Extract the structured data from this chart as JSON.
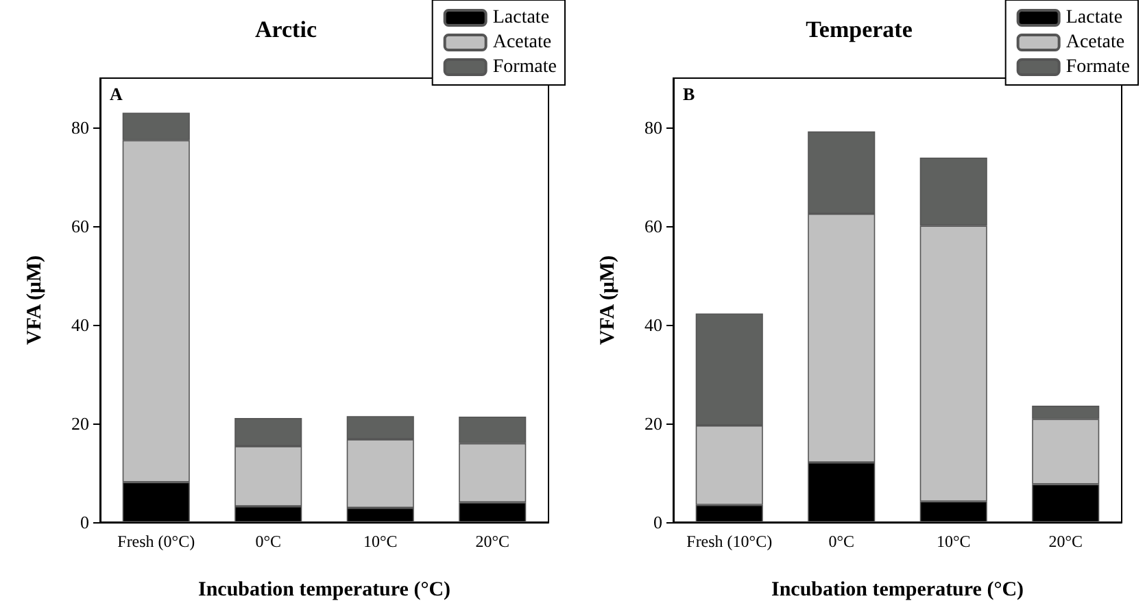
{
  "chart_data": [
    {
      "type": "bar",
      "title": "Arctic",
      "xlabel": "Incubation temperature (°C)",
      "ylabel": "VFA (μM)",
      "annotations": [
        "A"
      ],
      "categories": [
        "Fresh (0°C)",
        "0°C",
        "10°C",
        "20°C"
      ],
      "stacked": true,
      "legend": "top right",
      "grid": false,
      "ylim": [
        0,
        90
      ],
      "yticks": [
        0,
        20,
        40,
        60,
        80
      ],
      "series": [
        {
          "name": "Lactate",
          "color": "#000000",
          "values": [
            8.1,
            3.2,
            2.9,
            4.0
          ]
        },
        {
          "name": "Acetate",
          "color": "#c0c0c0",
          "values": [
            69.3,
            12.2,
            13.9,
            12.0
          ]
        },
        {
          "name": "Formate",
          "color": "#5f615f",
          "values": [
            5.6,
            5.7,
            4.7,
            5.4
          ]
        }
      ]
    },
    {
      "type": "bar",
      "title": "Temperate",
      "xlabel": "Incubation temperature (°C)",
      "ylabel": "VFA (μM)",
      "annotations": [
        "B"
      ],
      "categories": [
        "Fresh (10°C)",
        "0°C",
        "10°C",
        "20°C"
      ],
      "stacked": true,
      "legend": "top right",
      "grid": false,
      "ylim": [
        0,
        90
      ],
      "yticks": [
        0,
        20,
        40,
        60,
        80
      ],
      "series": [
        {
          "name": "Lactate",
          "color": "#000000",
          "values": [
            3.5,
            12.1,
            4.2,
            7.7
          ]
        },
        {
          "name": "Acetate",
          "color": "#c0c0c0",
          "values": [
            16.1,
            50.4,
            55.9,
            13.2
          ]
        },
        {
          "name": "Formate",
          "color": "#5f615f",
          "values": [
            22.7,
            16.7,
            13.8,
            2.7
          ]
        }
      ]
    }
  ]
}
